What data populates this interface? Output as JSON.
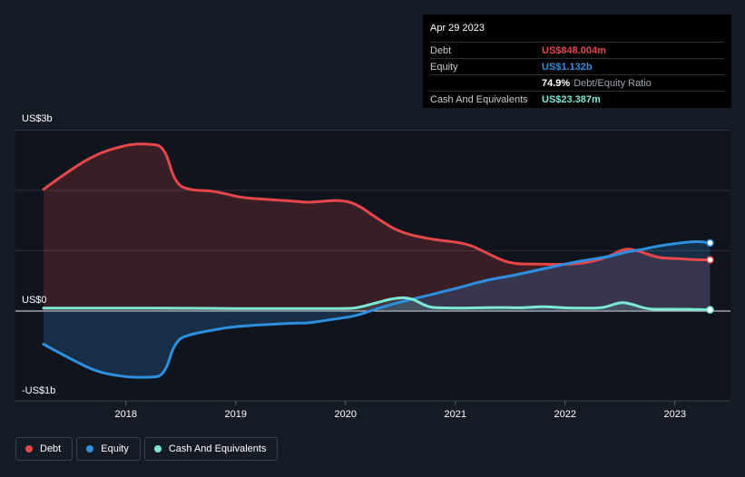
{
  "colors": {
    "debt": "#e5474b",
    "equity": "#2d8fe0",
    "cash": "#7ee8d6",
    "plot_bg": "#10151d"
  },
  "tooltip": {
    "date": "Apr 29 2023",
    "rows": [
      {
        "label": "Debt",
        "value": "US$848.004m",
        "color": "#e5474b",
        "extra": ""
      },
      {
        "label": "Equity",
        "value": "US$1.132b",
        "color": "#2d8fe0",
        "extra": ""
      },
      {
        "label": "",
        "value": "74.9%",
        "color": "#ffffff",
        "extra": "Debt/Equity Ratio"
      },
      {
        "label": "Cash And Equivalents",
        "value": "US$23.387m",
        "color": "#7ee8d6",
        "extra": ""
      }
    ]
  },
  "legend": {
    "items": [
      {
        "label": "Debt",
        "icon": "debt-legend-dot",
        "color": "#e5474b"
      },
      {
        "label": "Equity",
        "icon": "equity-legend-dot",
        "color": "#2d8fe0"
      },
      {
        "label": "Cash And Equivalents",
        "icon": "cash-legend-dot",
        "color": "#7ee8d6"
      }
    ]
  },
  "chart_data": {
    "type": "area",
    "title": "",
    "xlabel": "",
    "ylabel": "",
    "y_tick_labels": [
      "US$3b",
      "US$0",
      "-US$1b"
    ],
    "y_tick_values": [
      3,
      0,
      -1
    ],
    "ylim": [
      -1.3,
      3.0
    ],
    "xlim": [
      2017.0,
      2023.32
    ],
    "x_tick_labels": [
      "2018",
      "2019",
      "2020",
      "2021",
      "2022",
      "2023"
    ],
    "x_tick_values": [
      2018,
      2019,
      2020,
      2021,
      2022,
      2023
    ],
    "grid": true,
    "legend_position": "bottom-left",
    "series": [
      {
        "name": "Debt",
        "color": "#e5474b",
        "x": [
          2017.25,
          2017.5,
          2017.75,
          2018.0,
          2018.1,
          2018.2,
          2018.35,
          2018.45,
          2018.6,
          2018.75,
          2018.9,
          2019.05,
          2019.3,
          2019.55,
          2019.65,
          2019.8,
          2019.95,
          2020.1,
          2020.3,
          2020.5,
          2020.8,
          2021.1,
          2021.3,
          2021.5,
          2021.75,
          2022.0,
          2022.2,
          2022.4,
          2022.55,
          2022.7,
          2022.85,
          2023.0,
          2023.2,
          2023.32
        ],
        "y": [
          2.02,
          2.35,
          2.62,
          2.75,
          2.77,
          2.77,
          2.74,
          2.1,
          2.0,
          2.0,
          1.95,
          1.88,
          1.85,
          1.82,
          1.8,
          1.82,
          1.84,
          1.78,
          1.52,
          1.3,
          1.18,
          1.13,
          0.95,
          0.78,
          0.78,
          0.77,
          0.8,
          0.9,
          1.05,
          0.98,
          0.88,
          0.87,
          0.85,
          0.85
        ]
      },
      {
        "name": "Equity",
        "color": "#2d8fe0",
        "x": [
          2017.25,
          2017.5,
          2017.75,
          2018.0,
          2018.1,
          2018.2,
          2018.35,
          2018.45,
          2018.6,
          2018.75,
          2018.9,
          2019.05,
          2019.3,
          2019.55,
          2019.65,
          2019.8,
          2019.95,
          2020.1,
          2020.3,
          2020.5,
          2020.8,
          2021.1,
          2021.3,
          2021.5,
          2021.75,
          2022.0,
          2022.2,
          2022.4,
          2022.55,
          2022.7,
          2022.85,
          2023.0,
          2023.2,
          2023.32
        ],
        "y": [
          -0.55,
          -0.8,
          -1.02,
          -1.09,
          -1.1,
          -1.1,
          -1.08,
          -0.48,
          -0.38,
          -0.33,
          -0.28,
          -0.25,
          -0.22,
          -0.2,
          -0.2,
          -0.16,
          -0.12,
          -0.08,
          0.05,
          0.15,
          0.28,
          0.42,
          0.52,
          0.58,
          0.68,
          0.78,
          0.85,
          0.9,
          0.98,
          1.02,
          1.08,
          1.12,
          1.16,
          1.13
        ]
      },
      {
        "name": "Cash And Equivalents",
        "color": "#7ee8d6",
        "x": [
          2017.25,
          2017.5,
          2017.75,
          2018.0,
          2018.5,
          2019.0,
          2019.5,
          2020.0,
          2020.1,
          2020.25,
          2020.45,
          2020.6,
          2020.75,
          2020.9,
          2021.2,
          2021.4,
          2021.6,
          2021.8,
          2022.0,
          2022.2,
          2022.35,
          2022.5,
          2022.6,
          2022.75,
          2022.9,
          2023.1,
          2023.32
        ],
        "y": [
          0.05,
          0.05,
          0.05,
          0.05,
          0.05,
          0.04,
          0.04,
          0.04,
          0.05,
          0.12,
          0.22,
          0.22,
          0.06,
          0.05,
          0.05,
          0.06,
          0.05,
          0.08,
          0.05,
          0.05,
          0.05,
          0.15,
          0.12,
          0.03,
          0.03,
          0.03,
          0.02
        ]
      }
    ]
  }
}
